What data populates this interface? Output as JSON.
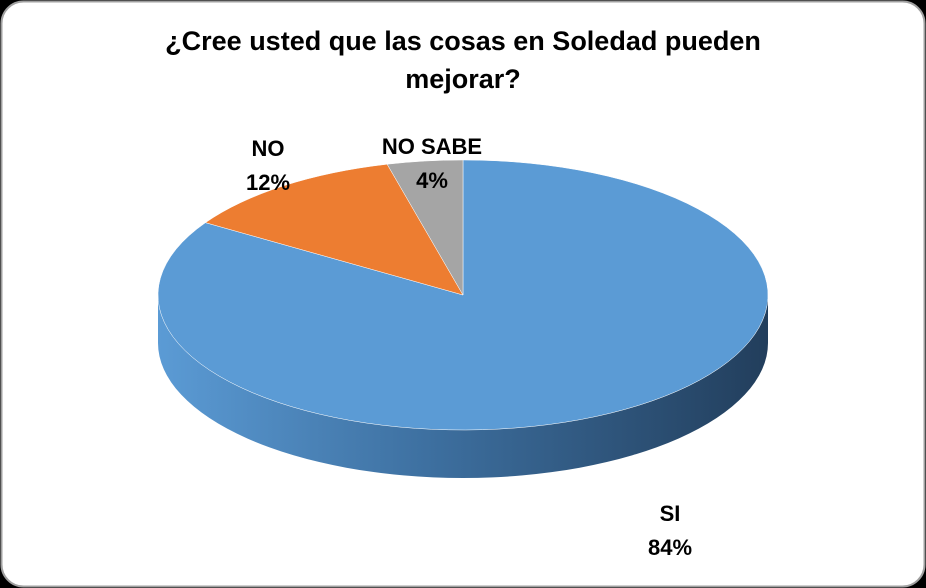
{
  "chart_data": {
    "type": "pie",
    "title": "¿Cree usted que las cosas en Soledad pueden mejorar?",
    "categories": [
      "SI",
      "NO",
      "NO SABE"
    ],
    "values": [
      84,
      12,
      4
    ],
    "value_labels": [
      "84%",
      "12%",
      "4%"
    ],
    "colors": [
      "#5b9bd5",
      "#ed7d31",
      "#a5a5a5"
    ]
  }
}
